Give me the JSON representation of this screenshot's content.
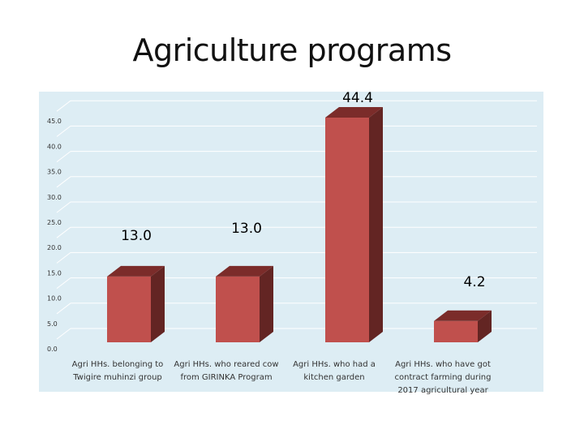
{
  "title": "Agriculture programs",
  "colors": {
    "background": "#DDEDF4",
    "gridline": "#FFFFFF",
    "bar_front": "#C0504D",
    "bar_side": "#632523",
    "bar_top": "#7B2C2A"
  },
  "chart_data": {
    "type": "bar",
    "style": "3d-column",
    "categories": [
      [
        "Agri HHs. belonging to",
        "Twigire muhinzi group"
      ],
      [
        "Agri HHs.  who reared cow",
        "from GIRINKA Program"
      ],
      [
        "Agri HHs.  who had a",
        "kitchen garden"
      ],
      [
        "Agri HHs. who have got",
        "contract farming during",
        "2017 agricultural year"
      ]
    ],
    "values": [
      13.0,
      13.0,
      44.4,
      4.2
    ],
    "data_labels": [
      "13.0",
      "13.0",
      "44.4",
      "4.2"
    ],
    "y_ticks": [
      "0.0",
      "5.0",
      "10.0",
      "15.0",
      "20.0",
      "25.0",
      "30.0",
      "35.0",
      "40.0",
      "45.0"
    ],
    "ylim": [
      0,
      45
    ],
    "grid": true,
    "legend": "none"
  }
}
